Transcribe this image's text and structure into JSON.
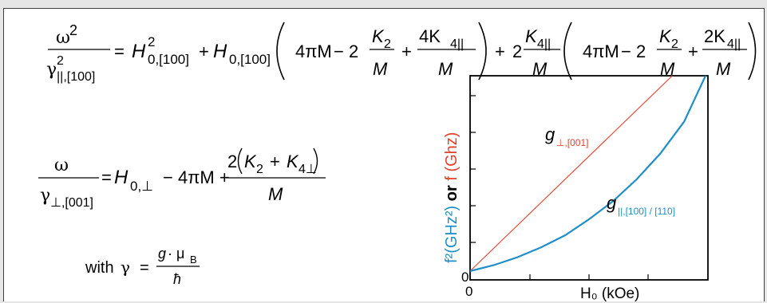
{
  "colors": {
    "perp": "#e5402b",
    "par": "#1f8fc7",
    "axis": "#000000",
    "text": "#000000"
  },
  "equation1": {
    "omega": "ω",
    "squared": "2",
    "gamma": "γ",
    "gamma_sq": "2",
    "gamma_sub": "||,[100]",
    "eq": "=",
    "H": "H",
    "H1_sup": "2",
    "H1_sub": "0,[100]",
    "plus": "+",
    "H2_sub": "0,[100]",
    "four_pi_M": "4πM",
    "minus_two": "− 2",
    "K": "K",
    "K2_sub": "2",
    "M": "M",
    "four_K": "4K",
    "K4_sub": "4||",
    "two": "2",
    "two_K": "2K"
  },
  "equation2": {
    "omega": "ω",
    "gamma": "γ",
    "gamma_sub": "⊥,[001]",
    "eq": "=",
    "H_term": "H",
    "H_sub": "0,⊥",
    "minus_4piM": "− 4πM +",
    "numerator_left": "2",
    "K": "K",
    "K2_sub": "2",
    "plus": "+",
    "K4_sub": "4⊥",
    "M": "M"
  },
  "equation3": {
    "with": "with",
    "gamma": "γ",
    "eq": "=",
    "g": "g",
    "dot_mu": "· μ",
    "mu_sub": "B",
    "hbar": "ħ"
  },
  "chart_data": {
    "type": "line",
    "title": "",
    "xlabel": "H₀ (kOe)",
    "ylabel_part1": "f²(GHz²)",
    "ylabel_part2": " or ",
    "ylabel_part3": "f (Ghz)",
    "x_tick_label": "0",
    "y_tick_label": "0",
    "xlim": [
      0,
      1
    ],
    "ylim": [
      0,
      1
    ],
    "series": [
      {
        "name": "g⊥,[001]",
        "color": "#e5402b",
        "x": [
          0,
          0.85
        ],
        "y": [
          0.02,
          1.0
        ]
      },
      {
        "name": "g||,[100] / [110]",
        "color": "#1f8fc7",
        "x": [
          0,
          0.1,
          0.2,
          0.3,
          0.4,
          0.5,
          0.6,
          0.7,
          0.8,
          0.9,
          0.99
        ],
        "y": [
          0.02,
          0.05,
          0.09,
          0.14,
          0.2,
          0.28,
          0.37,
          0.48,
          0.61,
          0.77,
          1.0
        ]
      }
    ],
    "labels": {
      "perp_g": "g",
      "perp_sub": "⊥,[001]",
      "par_g": "g",
      "par_sub": "||,[100] / [110]"
    }
  }
}
